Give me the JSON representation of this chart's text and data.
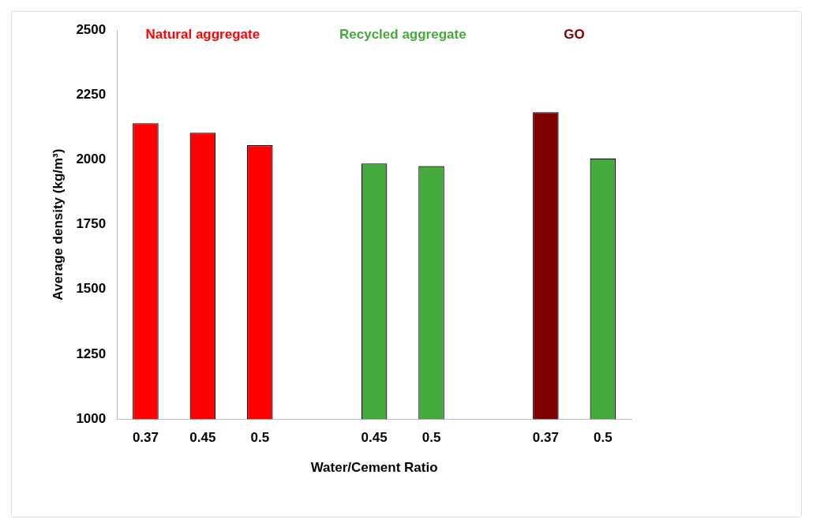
{
  "chart_data": {
    "type": "bar",
    "xlabel": "Water/Cement Ratio",
    "ylabel": "Average density (kg/m³)",
    "categories": [
      "0.37",
      "0.45",
      "0.5",
      null,
      "0.45",
      "0.5",
      null,
      "0.37",
      "0.5"
    ],
    "values": [
      2140,
      2104,
      2056,
      null,
      1985,
      1975,
      null,
      2183,
      2005
    ],
    "colors": [
      "#ff0000",
      "#ff0000",
      "#ff0000",
      "#ffffff",
      "#44aa3c",
      "#44aa3c",
      "#ffffff",
      "#800000",
      "#44aa3c"
    ],
    "ylim": [
      1000,
      2500
    ],
    "yticks": [
      1000,
      1250,
      1500,
      1750,
      2000,
      2250,
      2500
    ],
    "annotations": [
      "Natural aggregate",
      "Recycled aggregate",
      "GO"
    ],
    "grid": false,
    "legend": false
  }
}
